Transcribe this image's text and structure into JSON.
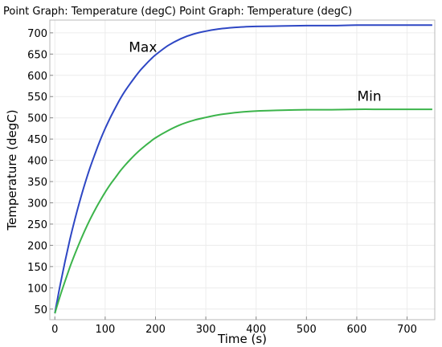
{
  "chart_data": {
    "type": "line",
    "title": "Point Graph: Temperature (degC)  Point Graph: Temperature (degC)",
    "xlabel": "Time (s)",
    "ylabel": "Temperature (degC)",
    "xlim": [
      -10,
      755
    ],
    "ylim": [
      25,
      730
    ],
    "grid": true,
    "x_ticks": [
      0,
      100,
      200,
      300,
      400,
      500,
      600,
      700
    ],
    "y_ticks": [
      50,
      100,
      150,
      200,
      250,
      300,
      350,
      400,
      450,
      500,
      550,
      600,
      650,
      700
    ],
    "x": [
      0,
      10,
      20,
      30,
      40,
      50,
      60,
      70,
      80,
      90,
      100,
      110,
      120,
      130,
      140,
      150,
      160,
      170,
      180,
      190,
      200,
      225,
      250,
      275,
      300,
      325,
      350,
      375,
      400,
      450,
      500,
      550,
      600,
      650,
      700,
      750
    ],
    "series": [
      {
        "name": "Max",
        "color": "#2e47c4",
        "values": [
          40,
          103,
          161,
          214,
          262,
          306,
          346,
          383,
          416,
          447,
          475,
          500,
          523,
          545,
          564,
          581,
          597,
          612,
          625,
          637,
          648,
          670,
          686,
          697,
          704,
          709,
          712,
          714,
          715,
          716,
          717,
          717,
          718,
          718,
          718,
          718
        ]
      },
      {
        "name": "Min",
        "color": "#3cb44b",
        "values": [
          40,
          79,
          115,
          149,
          180,
          209,
          236,
          261,
          284,
          305,
          325,
          343,
          359,
          375,
          389,
          402,
          414,
          425,
          435,
          444,
          453,
          470,
          484,
          494,
          501,
          507,
          511,
          514,
          516,
          518,
          519,
          519,
          520,
          520,
          520,
          520
        ]
      }
    ],
    "annotations": [
      {
        "text": "Max",
        "x": 175,
        "y": 655
      },
      {
        "text": "Min",
        "x": 625,
        "y": 540
      }
    ]
  }
}
